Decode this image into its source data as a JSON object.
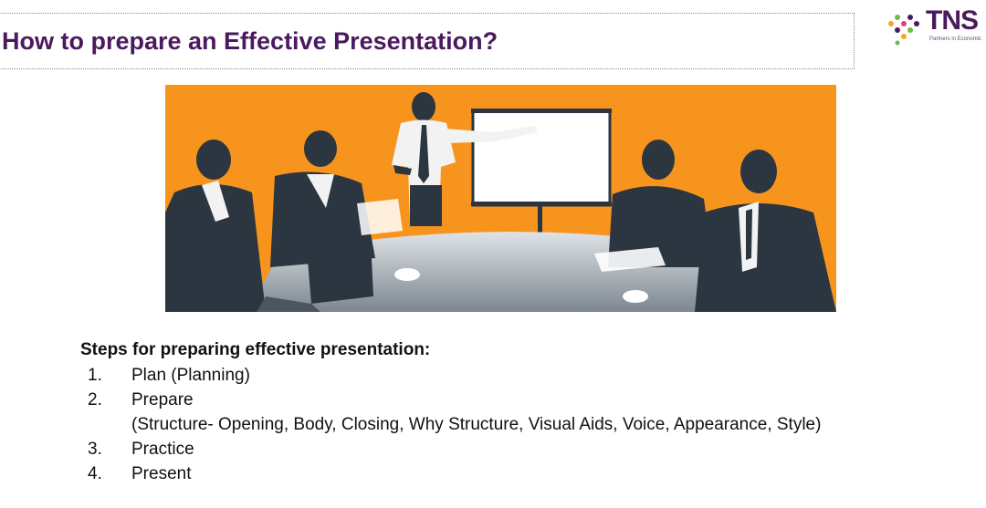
{
  "slide": {
    "title": "How to prepare an Effective Presentation?"
  },
  "logo": {
    "name": "TNS",
    "tagline": "Partners in Economic",
    "colors": [
      "#f5a623",
      "#6bbd45",
      "#4b1a5e",
      "#e83a7a"
    ]
  },
  "illustration": {
    "icon": "meeting-presentation-illustration",
    "background_color": "#f7941d",
    "figure_color": "#2b3640"
  },
  "steps": {
    "heading": "Steps for preparing effective presentation:",
    "items": [
      {
        "num": "1.",
        "label": "Plan (Planning)",
        "sub": ""
      },
      {
        "num": "2.",
        "label": "Prepare",
        "sub": "(Structure- Opening, Body, Closing, Why Structure, Visual Aids, Voice, Appearance, Style)"
      },
      {
        "num": "3.",
        "label": "Practice",
        "sub": ""
      },
      {
        "num": "4.",
        "label": "Present",
        "sub": ""
      }
    ]
  }
}
